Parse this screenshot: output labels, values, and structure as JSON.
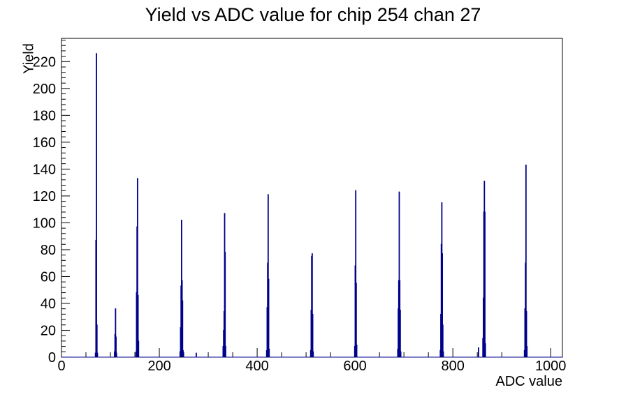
{
  "chart_data": {
    "type": "histogram",
    "title": "Yield vs ADC value for chip 254 chan 27",
    "xlabel": "ADC value",
    "ylabel": "Yield",
    "xlim": [
      0,
      1024
    ],
    "ylim": [
      0,
      237.3
    ],
    "x_major_ticks": [
      0,
      200,
      400,
      600,
      800,
      1000
    ],
    "x_minor_tick_step": 50,
    "y_major_ticks": [
      0,
      20,
      40,
      60,
      80,
      100,
      120,
      140,
      160,
      180,
      200,
      220
    ],
    "y_minor_tick_step": 4,
    "grid": false,
    "legend": false,
    "line_color": "#00008b",
    "axis_color": "#000000",
    "background_color": "#ffffff",
    "bins": [
      [
        69,
        3
      ],
      [
        70,
        87
      ],
      [
        71,
        226
      ],
      [
        72,
        24
      ],
      [
        73,
        3
      ],
      [
        108,
        4
      ],
      [
        109,
        17
      ],
      [
        110,
        36
      ],
      [
        111,
        15
      ],
      [
        112,
        3
      ],
      [
        152,
        4
      ],
      [
        153,
        48
      ],
      [
        154,
        97
      ],
      [
        155,
        133
      ],
      [
        156,
        46
      ],
      [
        157,
        12
      ],
      [
        242,
        4
      ],
      [
        243,
        22
      ],
      [
        244,
        53
      ],
      [
        245,
        102
      ],
      [
        246,
        57
      ],
      [
        247,
        42
      ],
      [
        248,
        5
      ],
      [
        275,
        3
      ],
      [
        330,
        8
      ],
      [
        331,
        20
      ],
      [
        332,
        34
      ],
      [
        333,
        107
      ],
      [
        334,
        78
      ],
      [
        335,
        8
      ],
      [
        419,
        5
      ],
      [
        420,
        37
      ],
      [
        421,
        70
      ],
      [
        422,
        121
      ],
      [
        423,
        58
      ],
      [
        424,
        6
      ],
      [
        509,
        5
      ],
      [
        510,
        35
      ],
      [
        511,
        75
      ],
      [
        512,
        77
      ],
      [
        513,
        32
      ],
      [
        514,
        4
      ],
      [
        599,
        8
      ],
      [
        600,
        68
      ],
      [
        601,
        124
      ],
      [
        602,
        55
      ],
      [
        603,
        9
      ],
      [
        687,
        6
      ],
      [
        688,
        36
      ],
      [
        689,
        57
      ],
      [
        690,
        123
      ],
      [
        691,
        57
      ],
      [
        692,
        35
      ],
      [
        693,
        4
      ],
      [
        774,
        5
      ],
      [
        775,
        32
      ],
      [
        776,
        84
      ],
      [
        777,
        115
      ],
      [
        778,
        77
      ],
      [
        779,
        24
      ],
      [
        780,
        4
      ],
      [
        852,
        7
      ],
      [
        861,
        14
      ],
      [
        862,
        44
      ],
      [
        863,
        108
      ],
      [
        864,
        131
      ],
      [
        865,
        108
      ],
      [
        866,
        10
      ],
      [
        946,
        5
      ],
      [
        947,
        36
      ],
      [
        948,
        70
      ],
      [
        949,
        143
      ],
      [
        950,
        34
      ],
      [
        951,
        8
      ]
    ]
  }
}
